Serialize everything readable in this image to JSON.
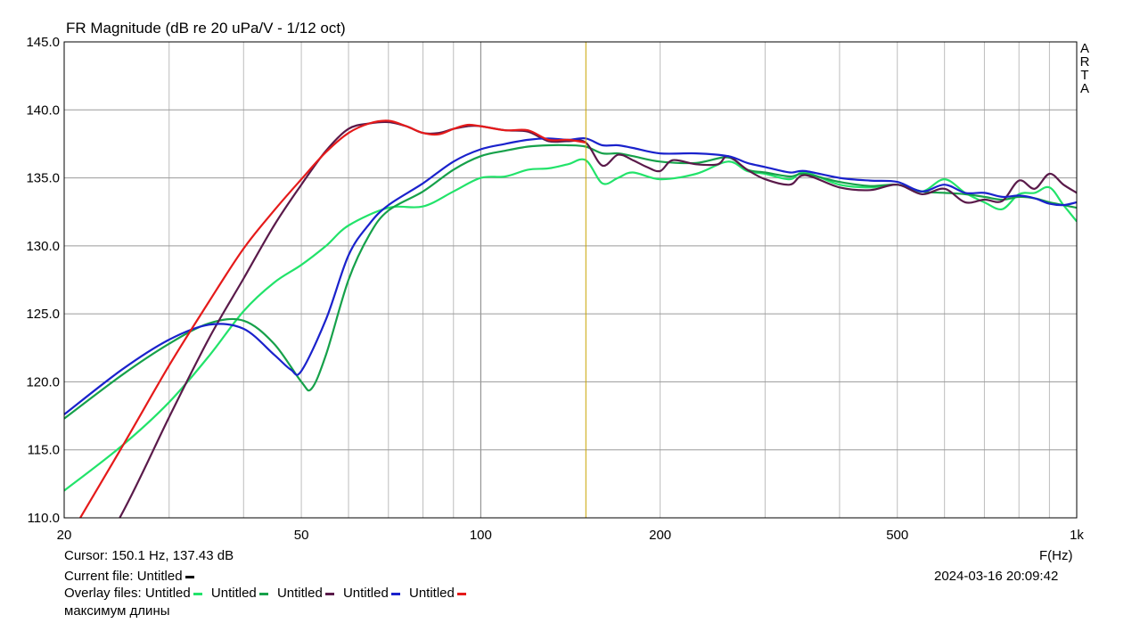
{
  "chart_data": {
    "type": "line",
    "title": "FR Magnitude (dB re 20 uPa/V - 1/12 oct)",
    "xlabel": "F(Hz)",
    "ylabel": "",
    "x_scale": "log",
    "xlim": [
      20,
      1000
    ],
    "ylim": [
      110,
      145
    ],
    "grid": true,
    "y_ticks": [
      "145.0",
      "140.0",
      "135.0",
      "130.0",
      "125.0",
      "120.0",
      "115.0",
      "110.0"
    ],
    "y_tick_values": [
      145,
      140,
      135,
      130,
      125,
      120,
      115,
      110
    ],
    "x_ticks": [
      "20",
      "50",
      "100",
      "200",
      "500",
      "1k"
    ],
    "x_tick_values": [
      20,
      50,
      100,
      200,
      500,
      1000
    ],
    "cursor_x": 150.1,
    "series": [
      {
        "color": "#22e36a",
        "x": [
          20,
          25,
          30,
          35,
          40,
          45,
          50,
          55,
          60,
          70,
          80,
          90,
          100,
          110,
          120,
          130,
          140,
          150,
          160,
          170,
          180,
          200,
          230,
          260,
          280,
          300,
          330,
          350,
          400,
          450,
          500,
          550,
          600,
          650,
          700,
          750,
          800,
          850,
          900,
          950,
          1000
        ],
        "y": [
          112.0,
          115.3,
          118.5,
          121.9,
          125.2,
          127.3,
          128.6,
          130.0,
          131.5,
          132.8,
          132.9,
          134.0,
          135.0,
          135.1,
          135.6,
          135.7,
          136.0,
          136.3,
          134.6,
          135.0,
          135.4,
          134.9,
          135.3,
          136.2,
          135.5,
          135.3,
          134.9,
          135.4,
          134.5,
          134.3,
          134.5,
          134.0,
          134.9,
          133.9,
          133.2,
          132.7,
          133.8,
          133.9,
          134.3,
          133.0,
          131.8
        ]
      },
      {
        "color": "#16a14a",
        "x": [
          20,
          25,
          30,
          35,
          40,
          45,
          50,
          52,
          55,
          60,
          65,
          70,
          80,
          90,
          100,
          110,
          120,
          130,
          140,
          150,
          160,
          170,
          180,
          200,
          230,
          260,
          280,
          300,
          330,
          350,
          400,
          450,
          500,
          550,
          600,
          650,
          700,
          750,
          800,
          850,
          900,
          950,
          1000
        ],
        "y": [
          117.3,
          120.5,
          122.8,
          124.3,
          124.5,
          122.8,
          120.0,
          119.5,
          122.0,
          127.5,
          130.8,
          132.6,
          134.0,
          135.6,
          136.6,
          137.0,
          137.3,
          137.4,
          137.4,
          137.3,
          136.8,
          136.8,
          136.6,
          136.2,
          136.1,
          136.5,
          135.6,
          135.4,
          135.1,
          135.3,
          134.7,
          134.4,
          134.5,
          134.0,
          133.9,
          133.8,
          133.6,
          133.4,
          133.6,
          133.5,
          133.2,
          133.0,
          132.8
        ]
      },
      {
        "color": "#5a1a4a",
        "x": [
          20,
          25,
          30,
          35,
          40,
          45,
          50,
          55,
          60,
          65,
          70,
          75,
          80,
          85,
          90,
          95,
          100,
          110,
          120,
          130,
          140,
          150,
          160,
          170,
          180,
          190,
          200,
          210,
          230,
          250,
          260,
          280,
          300,
          330,
          350,
          400,
          450,
          500,
          550,
          600,
          650,
          700,
          750,
          800,
          850,
          900,
          950,
          1000
        ],
        "y": [
          103.0,
          110.3,
          117.4,
          123.2,
          127.6,
          131.5,
          134.5,
          137.0,
          138.6,
          139.0,
          139.1,
          138.8,
          138.3,
          138.3,
          138.6,
          138.8,
          138.8,
          138.5,
          138.4,
          137.7,
          137.7,
          137.6,
          135.9,
          136.7,
          136.3,
          135.8,
          135.5,
          136.3,
          136.0,
          136.0,
          136.6,
          135.6,
          134.9,
          134.5,
          135.2,
          134.3,
          134.1,
          134.5,
          133.8,
          134.2,
          133.2,
          133.4,
          133.3,
          134.8,
          134.2,
          135.3,
          134.5,
          133.9
        ]
      },
      {
        "color": "#1a22cc",
        "x": [
          20,
          25,
          30,
          35,
          40,
          45,
          48,
          50,
          55,
          60,
          65,
          70,
          80,
          90,
          100,
          110,
          120,
          130,
          140,
          150,
          160,
          170,
          180,
          200,
          230,
          260,
          280,
          300,
          330,
          350,
          400,
          450,
          500,
          550,
          600,
          650,
          700,
          750,
          800,
          850,
          900,
          950,
          1000
        ],
        "y": [
          117.6,
          120.9,
          123.1,
          124.2,
          123.9,
          122.0,
          120.9,
          120.8,
          124.6,
          129.3,
          131.6,
          133.0,
          134.6,
          136.2,
          137.1,
          137.5,
          137.8,
          137.9,
          137.8,
          137.9,
          137.4,
          137.4,
          137.2,
          136.8,
          136.8,
          136.6,
          136.1,
          135.8,
          135.4,
          135.5,
          135.0,
          134.8,
          134.7,
          134.0,
          134.5,
          133.9,
          133.9,
          133.6,
          133.7,
          133.5,
          133.1,
          133.0,
          133.2
        ]
      },
      {
        "color": "#e51a1a",
        "x": [
          20,
          25,
          30,
          35,
          40,
          45,
          50,
          55,
          60,
          65,
          70,
          75,
          80,
          85,
          90,
          95,
          100,
          110,
          120,
          130,
          140,
          150
        ],
        "y": [
          108.0,
          115.2,
          121.2,
          125.9,
          129.8,
          132.6,
          134.9,
          136.9,
          138.3,
          139.0,
          139.2,
          138.8,
          138.3,
          138.2,
          138.6,
          138.9,
          138.8,
          138.5,
          138.5,
          137.8,
          137.8,
          137.6
        ]
      }
    ]
  },
  "arta_label": [
    "A",
    "R",
    "T",
    "A"
  ],
  "cursor_readout": "Cursor: 150.1 Hz, 137.43 dB",
  "current_file": {
    "label": "Current file: Untitled",
    "swatch_color": "#000000"
  },
  "overlay_files": {
    "label": "Overlay files:",
    "items": [
      {
        "name": "Untitled",
        "color": "#22e36a"
      },
      {
        "name": "Untitled",
        "color": "#16a14a"
      },
      {
        "name": "Untitled",
        "color": "#5a1a4a"
      },
      {
        "name": "Untitled",
        "color": "#1a22cc"
      },
      {
        "name": "Untitled",
        "color": "#e51a1a"
      }
    ]
  },
  "comment": "максимум длины",
  "datetime": "2024-03-16  20:09:42"
}
